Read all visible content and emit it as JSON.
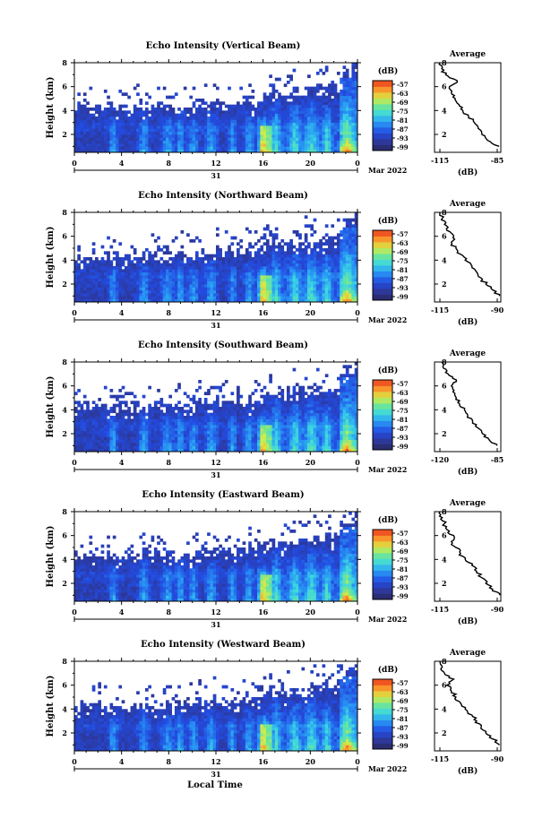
{
  "figure": {
    "xlabel": "Local Time",
    "date_label": "Mar 2022",
    "day_label": "31"
  },
  "chart_data": [
    {
      "type": "heatmap",
      "title": "Echo Intensity (Vertical Beam)",
      "ylabel": "Height (km)",
      "xlabel": "",
      "xlim": [
        0,
        24
      ],
      "ylim": [
        0.5,
        8
      ],
      "xticks": [
        "0",
        "4",
        "8",
        "12",
        "16",
        "20",
        "0"
      ],
      "yticks": [
        "2",
        "4",
        "6",
        "8"
      ],
      "colorbar": {
        "label": "(dB)",
        "ticks": [
          "-57",
          "-63",
          "-69",
          "-75",
          "-81",
          "-87",
          "-93",
          "-99"
        ]
      },
      "average": {
        "title": "Average",
        "xlabel": "(dB)",
        "xticks": [
          "-115",
          "-85"
        ],
        "xlim": [
          -115,
          -85
        ],
        "profile": [
          [
            -84,
            1.0
          ],
          [
            -90,
            1.5
          ],
          [
            -93,
            2.0
          ],
          [
            -95,
            2.5
          ],
          [
            -97,
            3.0
          ],
          [
            -100,
            3.5
          ],
          [
            -103,
            4.0
          ],
          [
            -105,
            4.5
          ],
          [
            -107,
            5.0
          ],
          [
            -109,
            5.5
          ],
          [
            -110,
            6.0
          ],
          [
            -106,
            6.5
          ],
          [
            -112,
            7.0
          ],
          [
            -114,
            7.5
          ],
          [
            -115,
            8.0
          ]
        ]
      }
    },
    {
      "type": "heatmap",
      "title": "Echo Intensity (Northward Beam)",
      "ylabel": "Height (km)",
      "xlabel": "",
      "xlim": [
        0,
        24
      ],
      "ylim": [
        0.5,
        8
      ],
      "xticks": [
        "0",
        "4",
        "8",
        "12",
        "16",
        "20",
        "0"
      ],
      "yticks": [
        "2",
        "4",
        "6",
        "8"
      ],
      "colorbar": {
        "label": "(dB)",
        "ticks": [
          "-57",
          "-63",
          "-69",
          "-75",
          "-81",
          "-87",
          "-93",
          "-99"
        ]
      },
      "average": {
        "title": "Average",
        "xlabel": "(dB)",
        "xticks": [
          "-115",
          "-90"
        ],
        "xlim": [
          -115,
          -90
        ],
        "profile": [
          [
            -89,
            1.0
          ],
          [
            -92,
            1.5
          ],
          [
            -95,
            2.0
          ],
          [
            -97,
            2.5
          ],
          [
            -99,
            3.0
          ],
          [
            -101,
            3.5
          ],
          [
            -104,
            4.0
          ],
          [
            -106,
            4.5
          ],
          [
            -108,
            5.0
          ],
          [
            -110,
            5.5
          ],
          [
            -109,
            6.0
          ],
          [
            -112,
            6.5
          ],
          [
            -113,
            7.0
          ],
          [
            -114,
            7.5
          ],
          [
            -115,
            8.0
          ]
        ]
      }
    },
    {
      "type": "heatmap",
      "title": "Echo Intensity (Southward Beam)",
      "ylabel": "Height (km)",
      "xlabel": "",
      "xlim": [
        0,
        24
      ],
      "ylim": [
        0.5,
        8
      ],
      "xticks": [
        "0",
        "4",
        "8",
        "12",
        "16",
        "20",
        "0"
      ],
      "yticks": [
        "2",
        "4",
        "6",
        "8"
      ],
      "colorbar": {
        "label": "(dB)",
        "ticks": [
          "-57",
          "-63",
          "-69",
          "-75",
          "-81",
          "-87",
          "-93",
          "-99"
        ]
      },
      "average": {
        "title": "Average",
        "xlabel": "(dB)",
        "xticks": [
          "-120",
          "-85"
        ],
        "xlim": [
          -120,
          -85
        ],
        "profile": [
          [
            -85,
            1.0
          ],
          [
            -90,
            1.5
          ],
          [
            -94,
            2.0
          ],
          [
            -97,
            2.5
          ],
          [
            -100,
            3.0
          ],
          [
            -103,
            3.5
          ],
          [
            -105,
            4.0
          ],
          [
            -108,
            4.5
          ],
          [
            -110,
            5.0
          ],
          [
            -112,
            5.5
          ],
          [
            -113,
            6.0
          ],
          [
            -110,
            6.5
          ],
          [
            -115,
            7.0
          ],
          [
            -118,
            7.5
          ],
          [
            -119,
            8.0
          ]
        ]
      }
    },
    {
      "type": "heatmap",
      "title": "Echo Intensity (Eastward Beam)",
      "ylabel": "Height (km)",
      "xlabel": "",
      "xlim": [
        0,
        24
      ],
      "ylim": [
        0.5,
        8
      ],
      "xticks": [
        "0",
        "4",
        "8",
        "12",
        "16",
        "20",
        "0"
      ],
      "yticks": [
        "2",
        "4",
        "6",
        "8"
      ],
      "colorbar": {
        "label": "(dB)",
        "ticks": [
          "-57",
          "-63",
          "-69",
          "-75",
          "-81",
          "-87",
          "-93",
          "-99"
        ]
      },
      "average": {
        "title": "Average",
        "xlabel": "(dB)",
        "xticks": [
          "-115",
          "-90"
        ],
        "xlim": [
          -115,
          -90
        ],
        "profile": [
          [
            -89,
            1.0
          ],
          [
            -92,
            1.5
          ],
          [
            -95,
            2.0
          ],
          [
            -97,
            2.5
          ],
          [
            -99,
            3.0
          ],
          [
            -101,
            3.5
          ],
          [
            -104,
            4.0
          ],
          [
            -106,
            4.5
          ],
          [
            -108,
            5.0
          ],
          [
            -110,
            5.5
          ],
          [
            -109,
            6.0
          ],
          [
            -112,
            6.5
          ],
          [
            -113,
            7.0
          ],
          [
            -114,
            7.5
          ],
          [
            -115,
            8.0
          ]
        ]
      }
    },
    {
      "type": "heatmap",
      "title": "Echo Intensity (Westward Beam)",
      "ylabel": "Height (km)",
      "xlabel": "Local Time",
      "xlim": [
        0,
        24
      ],
      "ylim": [
        0.5,
        8
      ],
      "xticks": [
        "0",
        "4",
        "8",
        "12",
        "16",
        "20",
        "0"
      ],
      "yticks": [
        "2",
        "4",
        "6",
        "8"
      ],
      "colorbar": {
        "label": "(dB)",
        "ticks": [
          "-57",
          "-63",
          "-69",
          "-75",
          "-81",
          "-87",
          "-93",
          "-99"
        ]
      },
      "average": {
        "title": "Average",
        "xlabel": "(dB)",
        "xticks": [
          "-115",
          "-90"
        ],
        "xlim": [
          -115,
          -90
        ],
        "profile": [
          [
            -89,
            1.0
          ],
          [
            -92,
            1.5
          ],
          [
            -95,
            2.0
          ],
          [
            -97,
            2.5
          ],
          [
            -99,
            3.0
          ],
          [
            -101,
            3.5
          ],
          [
            -104,
            4.0
          ],
          [
            -106,
            4.5
          ],
          [
            -108,
            5.0
          ],
          [
            -110,
            5.5
          ],
          [
            -112,
            6.0
          ],
          [
            -109,
            6.5
          ],
          [
            -113,
            7.0
          ],
          [
            -114,
            7.5
          ],
          [
            -115,
            8.0
          ]
        ]
      }
    }
  ]
}
